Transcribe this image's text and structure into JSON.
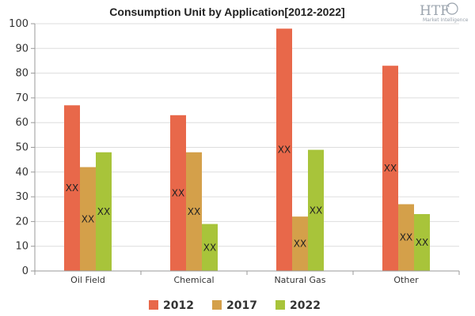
{
  "chart_data": {
    "type": "bar",
    "title": "Consumption Unit by  Application[2012-2022]",
    "categories": [
      "Oil Field",
      "Chemical",
      "Natural Gas",
      "Other"
    ],
    "series": [
      {
        "name": "2012",
        "color": "#e8684a",
        "values": [
          67,
          63,
          98,
          83
        ],
        "labels": [
          "XX",
          "XX",
          "XX",
          "XX"
        ]
      },
      {
        "name": "2017",
        "color": "#d4a04a",
        "values": [
          42,
          48,
          22,
          27
        ],
        "labels": [
          "XX",
          "XX",
          "XX",
          "XX"
        ]
      },
      {
        "name": "2022",
        "color": "#a8c43a",
        "values": [
          48,
          19,
          49,
          23
        ],
        "labels": [
          "XX",
          "XX",
          "XX",
          "XX"
        ]
      }
    ],
    "ylim": [
      0,
      100
    ],
    "yticks": [
      0,
      10,
      20,
      30,
      40,
      50,
      60,
      70,
      80,
      90,
      100
    ],
    "grid": true,
    "legend": "bottom-center"
  },
  "logo": {
    "text": "HTF",
    "subtext": "Market Intelligence"
  }
}
